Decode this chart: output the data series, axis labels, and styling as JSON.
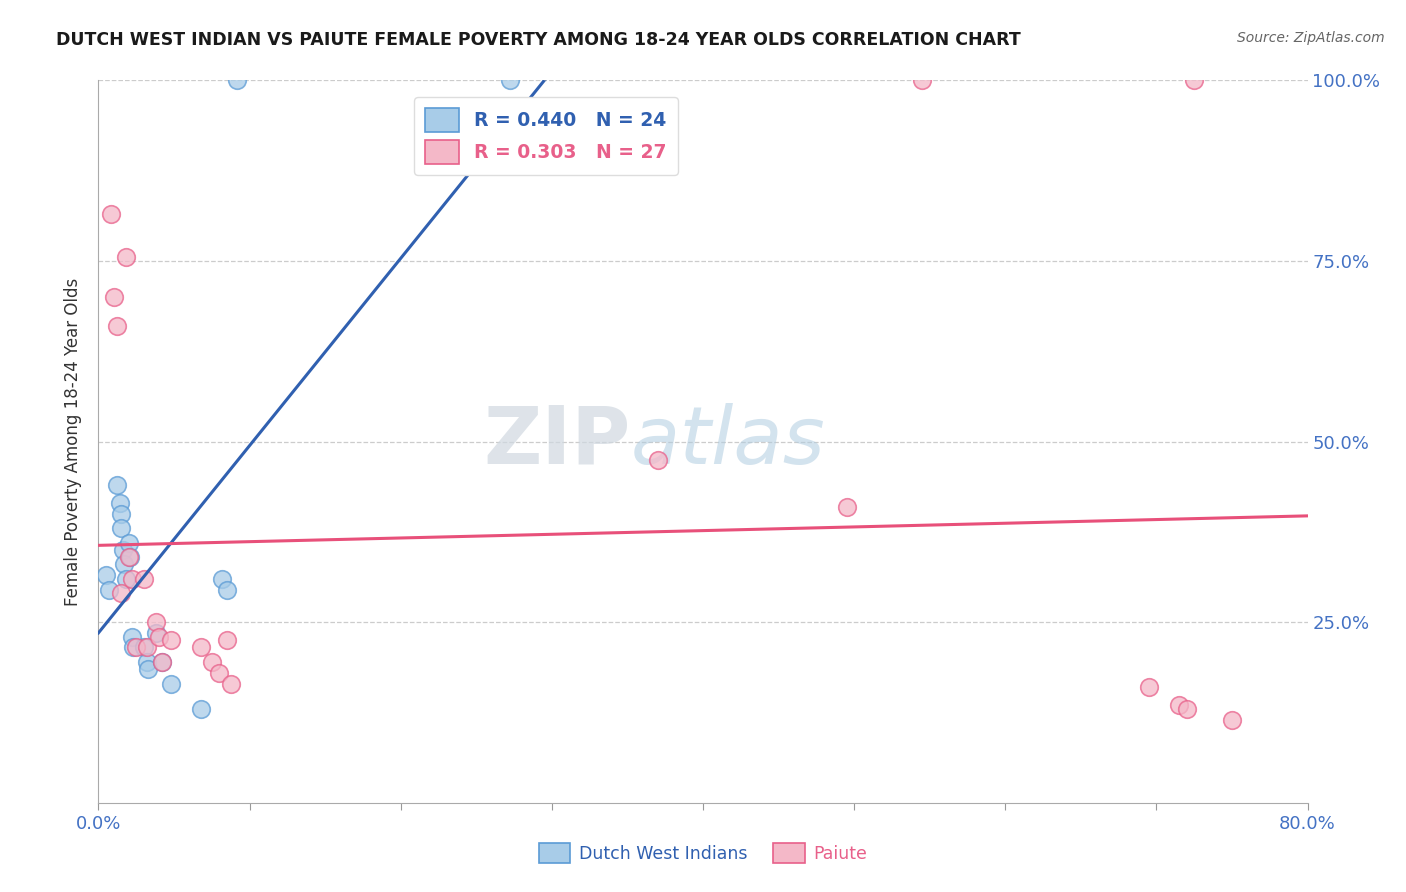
{
  "title": "DUTCH WEST INDIAN VS PAIUTE FEMALE POVERTY AMONG 18-24 YEAR OLDS CORRELATION CHART",
  "source": "Source: ZipAtlas.com",
  "ylabel": "Female Poverty Among 18-24 Year Olds",
  "xlim": [
    0.0,
    0.8
  ],
  "ylim": [
    0.0,
    1.0
  ],
  "xticks": [
    0.0,
    0.1,
    0.2,
    0.3,
    0.4,
    0.5,
    0.6,
    0.7,
    0.8
  ],
  "xticklabels": [
    "0.0%",
    "",
    "",
    "",
    "",
    "",
    "",
    "",
    "80.0%"
  ],
  "yticks": [
    0.0,
    0.25,
    0.5,
    0.75,
    1.0
  ],
  "yticklabels": [
    "",
    "25.0%",
    "50.0%",
    "75.0%",
    "100.0%"
  ],
  "legend_blue_label": "Dutch West Indians",
  "legend_pink_label": "Paiute",
  "blue_R": 0.44,
  "blue_N": 24,
  "pink_R": 0.303,
  "pink_N": 27,
  "blue_color": "#a8cce8",
  "pink_color": "#f4b8c8",
  "blue_edge_color": "#5b9bd5",
  "pink_edge_color": "#e8608a",
  "blue_line_color": "#3060b0",
  "pink_line_color": "#e8507a",
  "axis_color": "#4472c4",
  "watermark_zip": "ZIP",
  "watermark_atlas": "atlas",
  "blue_x": [
    0.005,
    0.007,
    0.012,
    0.014,
    0.015,
    0.015,
    0.016,
    0.017,
    0.018,
    0.02,
    0.021,
    0.022,
    0.023,
    0.03,
    0.032,
    0.033,
    0.038,
    0.042,
    0.048,
    0.068,
    0.082,
    0.085,
    0.092,
    0.272
  ],
  "blue_y": [
    0.315,
    0.295,
    0.44,
    0.415,
    0.4,
    0.38,
    0.35,
    0.33,
    0.31,
    0.36,
    0.34,
    0.23,
    0.215,
    0.215,
    0.195,
    0.185,
    0.235,
    0.195,
    0.165,
    0.13,
    0.31,
    0.295,
    1.0,
    1.0
  ],
  "pink_x": [
    0.008,
    0.01,
    0.012,
    0.015,
    0.018,
    0.02,
    0.022,
    0.025,
    0.03,
    0.032,
    0.038,
    0.04,
    0.042,
    0.048,
    0.068,
    0.075,
    0.08,
    0.085,
    0.088,
    0.37,
    0.495,
    0.545,
    0.695,
    0.715,
    0.72,
    0.725,
    0.75
  ],
  "pink_y": [
    0.815,
    0.7,
    0.66,
    0.29,
    0.755,
    0.34,
    0.31,
    0.215,
    0.31,
    0.215,
    0.25,
    0.23,
    0.195,
    0.225,
    0.215,
    0.195,
    0.18,
    0.225,
    0.165,
    0.475,
    0.41,
    1.0,
    0.16,
    0.135,
    0.13,
    1.0,
    0.115
  ]
}
